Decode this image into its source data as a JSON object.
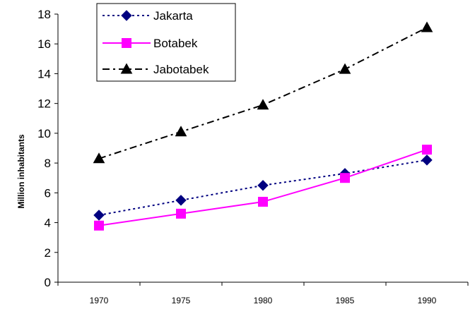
{
  "chart_data": {
    "type": "line",
    "title": "",
    "xlabel": "",
    "ylabel": "Million inhabitants",
    "categories": [
      "1970",
      "1975",
      "1980",
      "1985",
      "1990"
    ],
    "ylim": [
      0,
      18
    ],
    "yticks": [
      0,
      2,
      4,
      6,
      8,
      10,
      12,
      14,
      16,
      18
    ],
    "grid": false,
    "legend_position": "top-left",
    "series": [
      {
        "name": "Jakarta",
        "values": [
          4.5,
          5.5,
          6.5,
          7.3,
          8.2
        ],
        "color": "#000080",
        "line_style": "dotted",
        "marker": "diamond"
      },
      {
        "name": "Botabek",
        "values": [
          3.8,
          4.6,
          5.4,
          7.0,
          8.9
        ],
        "color": "#ff00ff",
        "line_style": "solid",
        "marker": "square"
      },
      {
        "name": "Jabotabek",
        "values": [
          8.3,
          10.1,
          11.9,
          14.3,
          17.1
        ],
        "color": "#000000",
        "line_style": "dash-dot",
        "marker": "triangle"
      }
    ]
  }
}
